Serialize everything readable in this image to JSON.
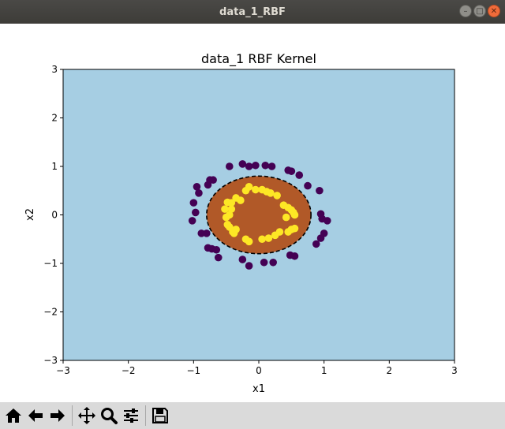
{
  "window": {
    "title": "data_1_RBF"
  },
  "window_controls": [
    "minimize-icon",
    "maximize-icon",
    "close-icon"
  ],
  "toolbar": {
    "buttons": [
      "home-icon",
      "back-icon",
      "forward-icon",
      "pan-icon",
      "zoom-icon",
      "configure-subplots-icon",
      "save-icon"
    ]
  },
  "colors": {
    "background_region": "#a6cee3",
    "inner_region": "#b15928",
    "class_0": "#440154",
    "class_1": "#fde725"
  },
  "chart_data": {
    "type": "scatter",
    "title": "data_1 RBF Kernel",
    "xlabel": "x1",
    "ylabel": "x2",
    "xlim": [
      -3,
      3
    ],
    "ylim": [
      -3,
      3
    ],
    "xticks": [
      "−3",
      "−2",
      "−1",
      "0",
      "1",
      "2",
      "3"
    ],
    "yticks": [
      "−3",
      "−2",
      "−1",
      "0",
      "1",
      "2",
      "3"
    ],
    "grid": false,
    "decision_boundary": {
      "shape": "ellipse",
      "center": [
        0.0,
        0.0
      ],
      "radius_x": 0.8,
      "radius_y": 0.8,
      "style": "dashed"
    },
    "series": [
      {
        "color": "#440154",
        "points": [
          [
            -0.45,
            1.0
          ],
          [
            -0.25,
            1.05
          ],
          [
            -0.15,
            1.0
          ],
          [
            -0.05,
            1.02
          ],
          [
            0.1,
            1.02
          ],
          [
            0.2,
            1.0
          ],
          [
            0.45,
            0.92
          ],
          [
            0.5,
            0.9
          ],
          [
            0.62,
            0.82
          ],
          [
            -0.75,
            0.72
          ],
          [
            -0.7,
            0.72
          ],
          [
            -0.78,
            0.62
          ],
          [
            -0.95,
            0.58
          ],
          [
            -0.92,
            0.45
          ],
          [
            -1.0,
            0.25
          ],
          [
            -0.97,
            0.05
          ],
          [
            -1.02,
            -0.12
          ],
          [
            -0.88,
            -0.38
          ],
          [
            -0.8,
            -0.38
          ],
          [
            -0.78,
            -0.68
          ],
          [
            -0.72,
            -0.7
          ],
          [
            -0.65,
            -0.72
          ],
          [
            -0.62,
            -0.88
          ],
          [
            -0.25,
            -0.92
          ],
          [
            -0.15,
            -1.05
          ],
          [
            0.08,
            -0.98
          ],
          [
            0.22,
            -0.98
          ],
          [
            0.48,
            -0.83
          ],
          [
            0.55,
            -0.85
          ],
          [
            0.75,
            0.6
          ],
          [
            0.93,
            0.5
          ],
          [
            0.95,
            0.02
          ],
          [
            0.97,
            -0.08
          ],
          [
            1.05,
            -0.12
          ],
          [
            1.0,
            -0.38
          ],
          [
            0.95,
            -0.48
          ],
          [
            0.88,
            -0.6
          ]
        ]
      },
      {
        "color": "#fde725",
        "points": [
          [
            -0.2,
            0.5
          ],
          [
            -0.15,
            0.58
          ],
          [
            -0.05,
            0.52
          ],
          [
            0.05,
            0.52
          ],
          [
            0.12,
            0.48
          ],
          [
            0.28,
            0.4
          ],
          [
            0.18,
            0.45
          ],
          [
            -0.28,
            0.3
          ],
          [
            -0.35,
            0.35
          ],
          [
            -0.48,
            0.26
          ],
          [
            -0.42,
            0.25
          ],
          [
            -0.52,
            0.12
          ],
          [
            -0.42,
            0.12
          ],
          [
            -0.45,
            0.0
          ],
          [
            -0.5,
            -0.05
          ],
          [
            -0.48,
            -0.2
          ],
          [
            -0.45,
            -0.25
          ],
          [
            -0.4,
            -0.35
          ],
          [
            -0.38,
            -0.38
          ],
          [
            -0.35,
            -0.3
          ],
          [
            -0.2,
            -0.5
          ],
          [
            -0.15,
            -0.55
          ],
          [
            0.05,
            -0.5
          ],
          [
            0.15,
            -0.48
          ],
          [
            0.25,
            -0.42
          ],
          [
            0.32,
            -0.35
          ],
          [
            0.45,
            -0.35
          ],
          [
            0.5,
            -0.3
          ],
          [
            0.55,
            -0.28
          ],
          [
            0.38,
            0.2
          ],
          [
            0.45,
            0.15
          ],
          [
            0.5,
            0.1
          ],
          [
            0.53,
            0.05
          ],
          [
            0.55,
            0.0
          ],
          [
            0.42,
            -0.05
          ]
        ]
      }
    ]
  }
}
